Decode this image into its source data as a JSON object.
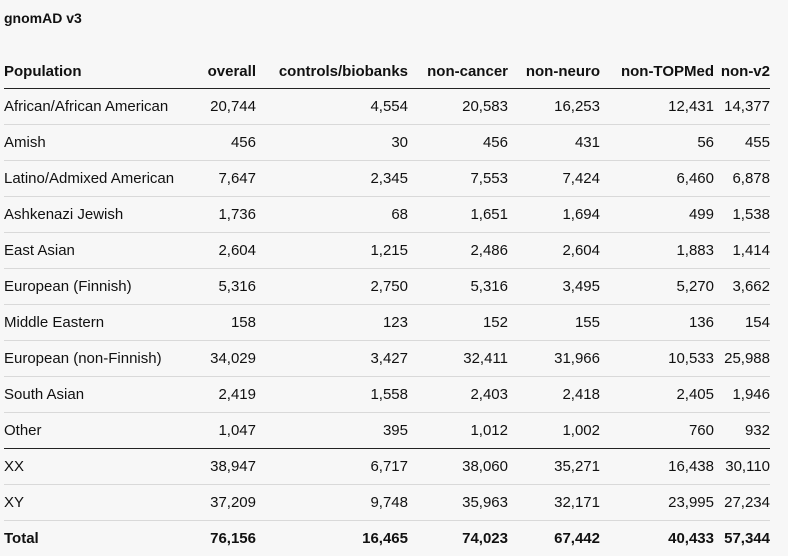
{
  "title": "gnomAD v3",
  "table": {
    "headers": [
      "Population",
      "overall",
      "controls/biobanks",
      "non-cancer",
      "non-neuro",
      "non-TOPMed",
      "non-v2"
    ],
    "rows": [
      [
        "African/African American",
        "20,744",
        "4,554",
        "20,583",
        "16,253",
        "12,431",
        "14,377"
      ],
      [
        "Amish",
        "456",
        "30",
        "456",
        "431",
        "56",
        "455"
      ],
      [
        "Latino/Admixed American",
        "7,647",
        "2,345",
        "7,553",
        "7,424",
        "6,460",
        "6,878"
      ],
      [
        "Ashkenazi Jewish",
        "1,736",
        "68",
        "1,651",
        "1,694",
        "499",
        "1,538"
      ],
      [
        "East Asian",
        "2,604",
        "1,215",
        "2,486",
        "2,604",
        "1,883",
        "1,414"
      ],
      [
        "European (Finnish)",
        "5,316",
        "2,750",
        "5,316",
        "3,495",
        "5,270",
        "3,662"
      ],
      [
        "Middle Eastern",
        "158",
        "123",
        "152",
        "155",
        "136",
        "154"
      ],
      [
        "European (non-Finnish)",
        "34,029",
        "3,427",
        "32,411",
        "31,966",
        "10,533",
        "25,988"
      ],
      [
        "South Asian",
        "2,419",
        "1,558",
        "2,403",
        "2,418",
        "2,405",
        "1,946"
      ],
      [
        "Other",
        "1,047",
        "395",
        "1,012",
        "1,002",
        "760",
        "932"
      ],
      [
        "XX",
        "38,947",
        "6,717",
        "38,060",
        "35,271",
        "16,438",
        "30,110"
      ],
      [
        "XY",
        "37,209",
        "9,748",
        "35,963",
        "32,171",
        "23,995",
        "27,234"
      ]
    ],
    "total": [
      "Total",
      "76,156",
      "16,465",
      "74,023",
      "67,442",
      "40,433",
      "57,344"
    ]
  }
}
